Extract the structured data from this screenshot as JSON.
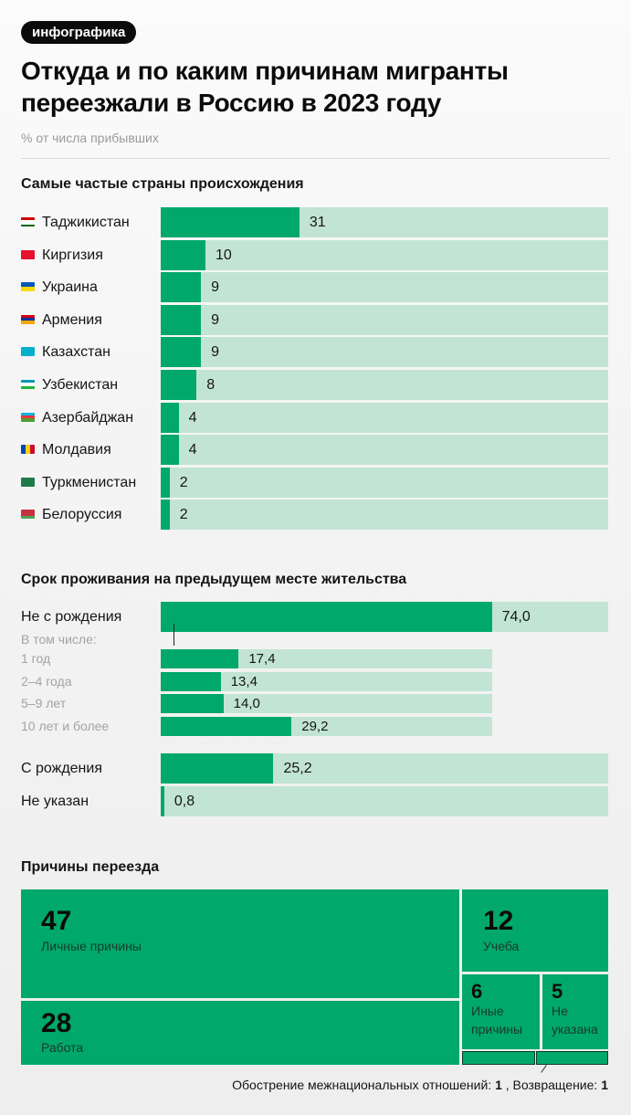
{
  "badge": "инфографика",
  "title": "Откуда и по каким причинам мигранты переезжали в Россию в 2023 году",
  "subtitle": "% от числа прибывших",
  "colors": {
    "bar_fill": "#00a86b",
    "bar_track": "#c2e4d5",
    "text": "#151515",
    "muted": "#a3a3a3"
  },
  "sections": {
    "countries": {
      "title": "Самые частые страны происхождения"
    },
    "residence": {
      "title": "Срок проживания на предыдущем месте жительства",
      "sub_caption": "В том числе:"
    },
    "reasons": {
      "title": "Причины переезда"
    }
  },
  "chart_data": [
    {
      "type": "bar",
      "orientation": "horizontal",
      "title": "Самые частые страны происхождения",
      "unit": "% от числа прибывших",
      "xlim": [
        0,
        100
      ],
      "categories": [
        "Таджикистан",
        "Киргизия",
        "Украина",
        "Армения",
        "Казахстан",
        "Узбекистан",
        "Азербайджан",
        "Молдавия",
        "Туркменистан",
        "Белоруссия"
      ],
      "values": [
        31,
        10,
        9,
        9,
        9,
        8,
        4,
        4,
        2,
        2
      ],
      "labels": [
        "31",
        "10",
        "9",
        "9",
        "9",
        "8",
        "4",
        "4",
        "2",
        "2"
      ],
      "flags": [
        "flag-tajikistan",
        "flag-kyrgyzstan",
        "flag-ukraine",
        "flag-armenia",
        "flag-kazakhstan",
        "flag-uzbekistan",
        "flag-azerbaijan",
        "flag-moldova",
        "flag-turkmenistan",
        "flag-belarus"
      ]
    },
    {
      "type": "bar",
      "orientation": "horizontal",
      "title": "Срок проживания на предыдущем месте жительства",
      "xlim": [
        0,
        100
      ],
      "categories": [
        "Не с рождения",
        "С рождения",
        "Не указан"
      ],
      "values": [
        74.0,
        25.2,
        0.8
      ],
      "labels": [
        "74,0",
        "25,2",
        "0,8"
      ],
      "breakdown": {
        "parent": "Не с рождения",
        "caption": "В том числе:",
        "scale_total": 74.0,
        "categories": [
          "1 год",
          "2–4 года",
          "5–9 лет",
          "10 лет и более"
        ],
        "values": [
          17.4,
          13.4,
          14.0,
          29.2
        ],
        "labels": [
          "17,4",
          "13,4",
          "14,0",
          "29,2"
        ]
      }
    },
    {
      "type": "treemap",
      "title": "Причины переезда",
      "categories": [
        "Личные причины",
        "Работа",
        "Учеба",
        "Иные причины",
        "Не указана",
        "Обострение межнациональных отношений",
        "Возвращение"
      ],
      "values": [
        47,
        28,
        12,
        6,
        5,
        1,
        1
      ]
    }
  ],
  "treemap": {
    "cells": [
      {
        "value": "47",
        "label": "Личные причины"
      },
      {
        "value": "28",
        "label": "Работа"
      },
      {
        "value": "12",
        "label": "Учеба"
      },
      {
        "value": "6",
        "label": "Иные причины"
      },
      {
        "value": "5",
        "label": "Не указана"
      }
    ],
    "footnote": {
      "item1_label": "Обострение межнациональных отношений: ",
      "item1_value": "1",
      "separator": " , ",
      "item2_label": "Возвращение: ",
      "item2_value": "1"
    }
  }
}
